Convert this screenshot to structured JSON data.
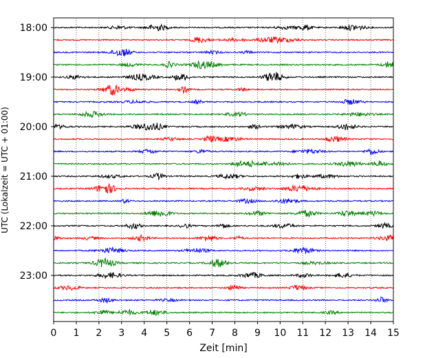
{
  "chart_data": {
    "type": "line",
    "subtype": "helicorder",
    "title": "",
    "xlabel": "Zeit  [min]",
    "ylabel": "UTC (Lokalzeit = UTC + 01:00)",
    "xlim": [
      0,
      15
    ],
    "x_ticks": [
      "0",
      "1",
      "2",
      "3",
      "4",
      "5",
      "6",
      "7",
      "8",
      "9",
      "10",
      "11",
      "12",
      "13",
      "14",
      "15"
    ],
    "y_tick_labels": [
      "18:00",
      "19:00",
      "20:00",
      "21:00",
      "22:00",
      "23:00"
    ],
    "traces_per_hour": 4,
    "trace_count": 24,
    "minutes_per_trace": 15,
    "start_time": "18:00",
    "grid": {
      "x": true,
      "style": "dotted"
    },
    "trace_colors": [
      "#000000",
      "#ff0000",
      "#0000ff",
      "#007f00"
    ]
  }
}
